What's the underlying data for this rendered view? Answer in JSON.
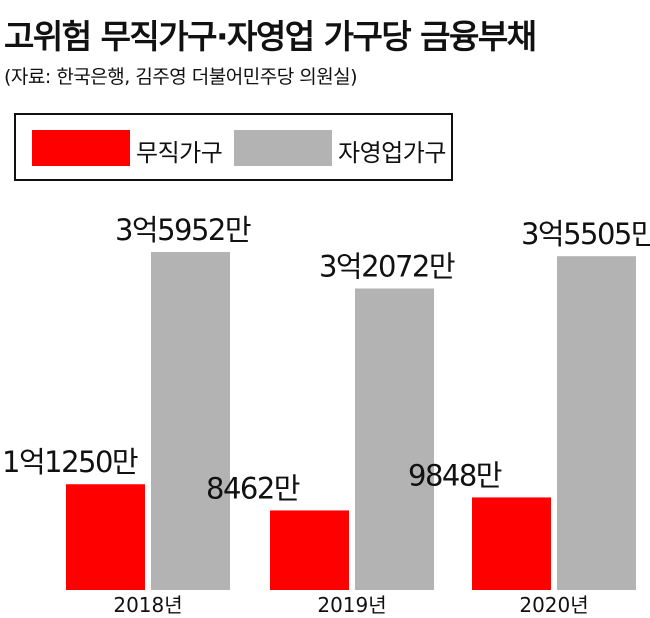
{
  "title": "고위험 무직가구·자영업 가구당 금융부채",
  "source": "(자료: 한국은행, 김주영 더불어민주당 의원실)",
  "colors": {
    "unemployed": "#ff0000",
    "self_employed": "#b3b3b3"
  },
  "chart_data": {
    "type": "bar",
    "title": "고위험 무직가구·자영업 가구당 금융부채",
    "categories": [
      "2018년",
      "2019년",
      "2020년"
    ],
    "unit": "원",
    "series": [
      {
        "name": "무직가구",
        "values": [
          112500000,
          84620000,
          98480000
        ],
        "labels": [
          "1억1250만",
          "8462만",
          "9848만"
        ]
      },
      {
        "name": "자영업가구",
        "values": [
          359520000,
          320720000,
          355050000
        ],
        "labels": [
          "3억5952만",
          "3억2072만",
          "3억5505만"
        ]
      }
    ],
    "ylim": [
      0,
      359520000
    ],
    "legend": "top-left",
    "grid": false
  }
}
